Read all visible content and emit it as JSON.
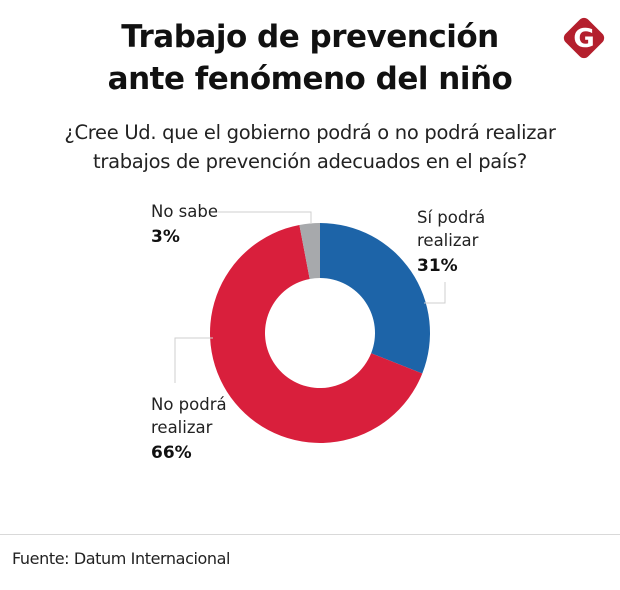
{
  "header": {
    "title_lines": [
      "Trabajo de prevención",
      "ante fenómeno del niño"
    ],
    "subtitle_lines": [
      "¿Cree Ud. que el gobierno podrá o no podrá realizar",
      "trabajos de prevención adecuados en el país?"
    ],
    "logo": {
      "icon": "g-diamond-logo-icon",
      "letter": "G",
      "color": "#b41f2d"
    }
  },
  "chart_data": {
    "type": "pie",
    "variant": "donut",
    "title": "Trabajo de prevención ante fenómeno del niño",
    "subtitle": "¿Cree Ud. que el gobierno podrá o no podrá realizar trabajos de prevención adecuados en el país?",
    "start": "top, clockwise",
    "slices": [
      {
        "name": "Sí podrá realizar",
        "label_lines": [
          "Sí podrá",
          "realizar"
        ],
        "value": 31,
        "display": "31%",
        "color": "#1d64a8"
      },
      {
        "name": "No podrá realizar",
        "label_lines": [
          "No podrá",
          "realizar"
        ],
        "value": 66,
        "display": "66%",
        "color": "#d91f3c"
      },
      {
        "name": "No sabe",
        "label_lines": [
          "No sabe"
        ],
        "value": 3,
        "display": "3%",
        "color": "#a7a9ac"
      }
    ],
    "units": "%"
  },
  "footer": {
    "source": "Fuente: Datum Internacional"
  }
}
